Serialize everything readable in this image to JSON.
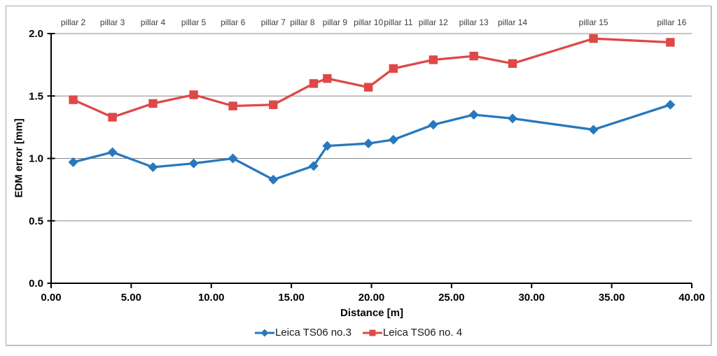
{
  "chart": {
    "y_axis_title": "EDM error [mm]",
    "x_axis_title": "Distance [m]"
  },
  "colors": {
    "series1": "#2878BE",
    "series2": "#DE4847",
    "grid": "#8a8a8a",
    "axis": "#000000",
    "pillar_text": "#3d3d3d"
  },
  "chart_data": {
    "type": "line",
    "title": "",
    "xlabel": "Distance [m]",
    "ylabel": "EDM error [mm]",
    "xlim": [
      0,
      40
    ],
    "ylim": [
      0.0,
      2.0
    ],
    "x_tick_step": 5,
    "y_tick_step": 0.5,
    "x_tick_labels": [
      "0.00",
      "5.00",
      "10.00",
      "15.00",
      "20.00",
      "25.00",
      "30.00",
      "35.00",
      "40.00"
    ],
    "y_tick_labels": [
      "0.0",
      "0.5",
      "1.0",
      "1.5",
      "2.0"
    ],
    "grid": "horizontal",
    "legend_position": "bottom",
    "pillar_labels": [
      "pillar 2",
      "pillar 3",
      "pillar 4",
      "pillar 5",
      "pillar 6",
      "pillar 7",
      "pillar 8",
      "pillar 9",
      "pillar 10",
      "pillar 11",
      "pillar 12",
      "pillar 13",
      "pillar 14",
      "pillar 15",
      "pillar 16"
    ],
    "x": [
      1.38,
      3.83,
      6.36,
      8.9,
      11.35,
      13.87,
      16.39,
      17.24,
      19.81,
      21.37,
      23.86,
      26.39,
      28.81,
      33.86,
      38.66
    ],
    "series": [
      {
        "name": "Leica TS06 no.3",
        "marker": "diamond",
        "color": "#2878BE",
        "values": [
          0.97,
          1.05,
          0.93,
          0.96,
          1.0,
          0.83,
          0.94,
          1.1,
          1.12,
          1.15,
          1.27,
          1.35,
          1.32,
          1.23,
          1.43
        ]
      },
      {
        "name": "Leica TS06 no. 4",
        "marker": "square",
        "color": "#DE4847",
        "values": [
          1.47,
          1.33,
          1.44,
          1.51,
          1.42,
          1.43,
          1.6,
          1.64,
          1.57,
          1.72,
          1.79,
          1.82,
          1.76,
          1.96,
          1.93
        ]
      }
    ]
  }
}
